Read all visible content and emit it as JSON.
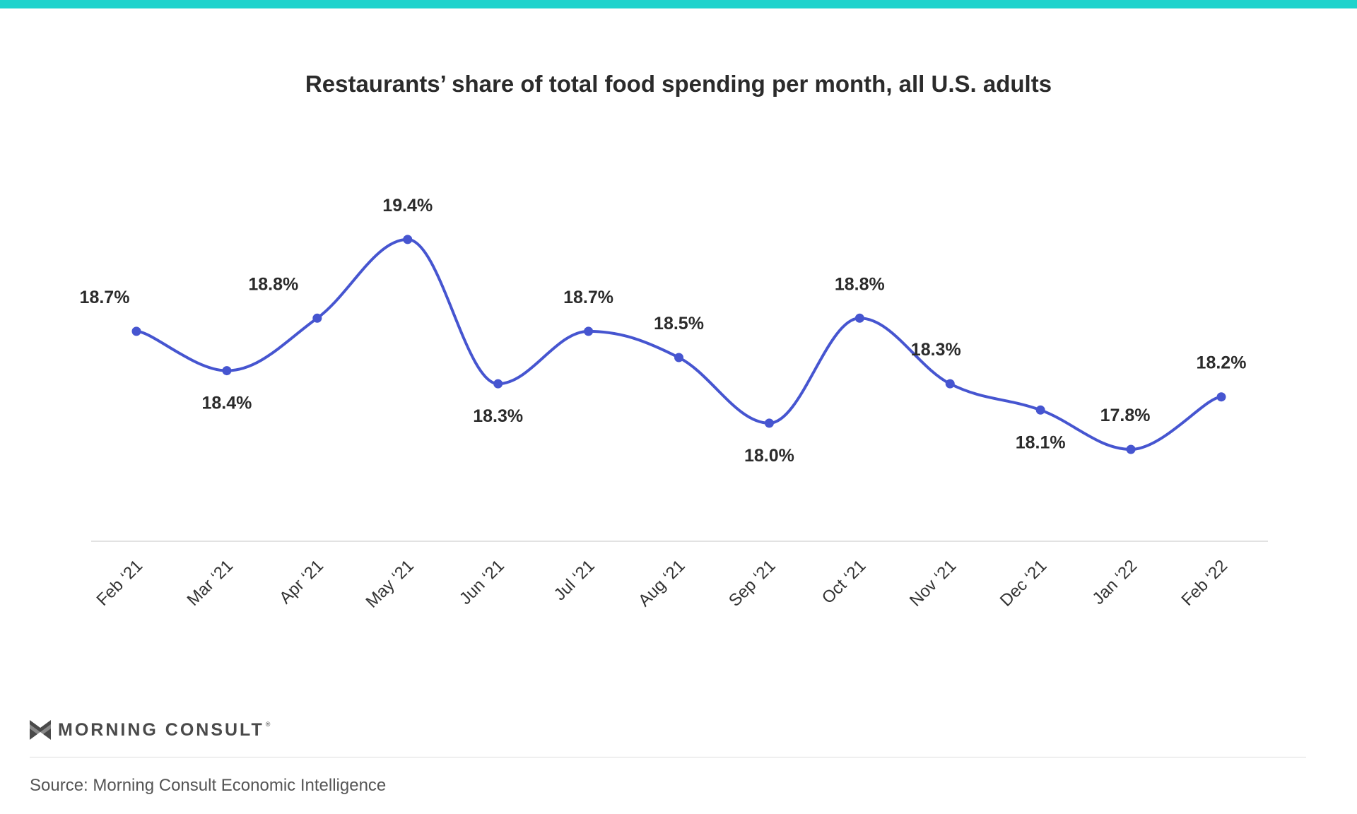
{
  "header": {
    "accent_color": "#1ed3cc"
  },
  "chart_data": {
    "type": "line",
    "title": "Restaurants’ share of total food spending per month, all U.S. adults",
    "categories": [
      "Feb ‘21",
      "Mar ‘21",
      "Apr ‘21",
      "May ‘21",
      "Jun ‘21",
      "Jul ‘21",
      "Aug ‘21",
      "Sep ‘21",
      "Oct ‘21",
      "Nov ‘21",
      "Dec ‘21",
      "Jan ‘22",
      "Feb ‘22"
    ],
    "values": [
      18.7,
      18.4,
      18.8,
      19.4,
      18.3,
      18.7,
      18.5,
      18.0,
      18.8,
      18.3,
      18.1,
      17.8,
      18.2
    ],
    "value_labels": [
      "18.7%",
      "18.4%",
      "18.8%",
      "19.4%",
      "18.3%",
      "18.7%",
      "18.5%",
      "18.0%",
      "18.8%",
      "18.3%",
      "18.1%",
      "17.8%",
      "18.2%"
    ],
    "label_positions": [
      "above",
      "below",
      "above",
      "above",
      "below",
      "above",
      "above",
      "below",
      "above",
      "above",
      "below",
      "above",
      "above"
    ],
    "ylim": [
      17.1,
      19.9
    ],
    "grid": false,
    "series_color": "#4655d0"
  },
  "branding": {
    "logo_text": "MORNING CONSULT",
    "logo_reg": "®"
  },
  "footer": {
    "source": "Source: Morning Consult Economic Intelligence"
  }
}
